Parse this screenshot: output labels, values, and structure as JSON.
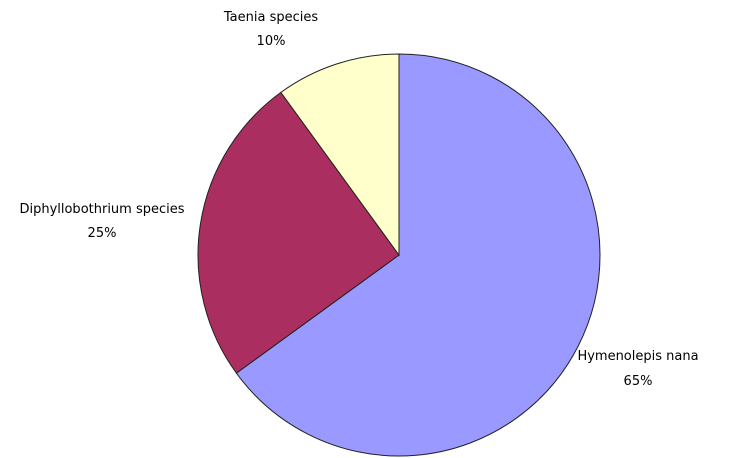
{
  "chart_data": {
    "type": "pie",
    "start_direction": "12 o'clock",
    "direction": "clockwise",
    "slices": [
      {
        "label": "Hymenolepis nana",
        "value": 65,
        "percent_label": "65%",
        "color": "#9999ff"
      },
      {
        "label": "Diphyllobothrium species",
        "value": 25,
        "percent_label": "25%",
        "color": "#993366"
      },
      {
        "label": "Taenia species",
        "value": 10,
        "percent_label": "10%",
        "color": "#ffffcc"
      }
    ],
    "slice_colors_rendered": [
      "#9999ff",
      "#ab2e60",
      "#ffffcc"
    ]
  }
}
